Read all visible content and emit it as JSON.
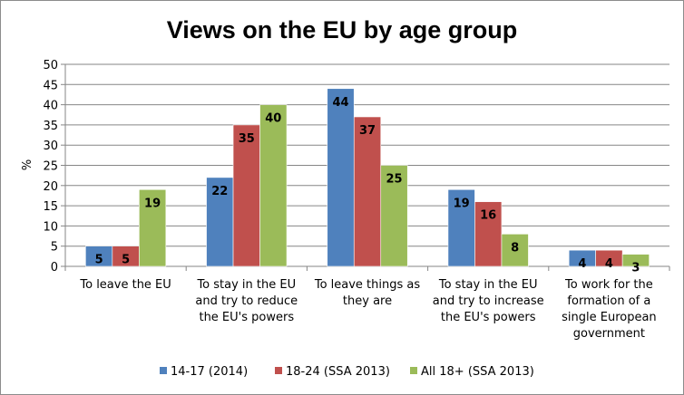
{
  "chart_data": {
    "type": "bar",
    "title": "Views on the EU by age group",
    "ylabel": "%",
    "xlabel": "",
    "ylim": [
      0,
      50
    ],
    "yticks": [
      0,
      5,
      10,
      15,
      20,
      25,
      30,
      35,
      40,
      45,
      50
    ],
    "grid": true,
    "legend_position": "bottom",
    "categories": [
      [
        "To leave the EU"
      ],
      [
        "To stay in the EU",
        "and try to reduce",
        "the EU's powers"
      ],
      [
        "To leave things as",
        "they are"
      ],
      [
        "To stay in the EU",
        "and try to increase",
        "the EU's powers"
      ],
      [
        "To work for the",
        "formation of a",
        "single European",
        "government"
      ]
    ],
    "series": [
      {
        "name": "14-17 (2014)",
        "color": "#4f81bd",
        "values": [
          5,
          22,
          44,
          19,
          4
        ]
      },
      {
        "name": "18-24 (SSA 2013)",
        "color": "#c0504d",
        "values": [
          5,
          35,
          37,
          16,
          4
        ]
      },
      {
        "name": "All 18+ (SSA 2013)",
        "color": "#9bbb59",
        "values": [
          19,
          40,
          25,
          8,
          3
        ]
      }
    ]
  }
}
